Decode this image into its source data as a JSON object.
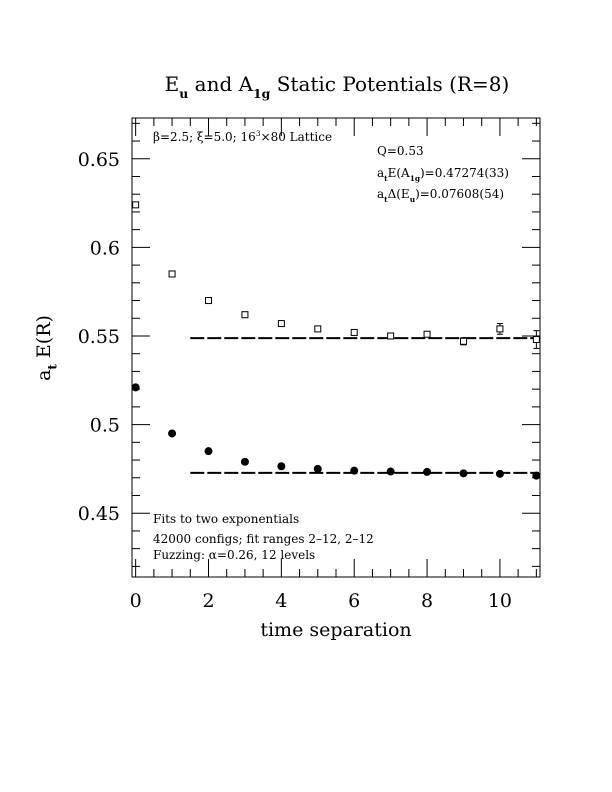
{
  "chart_data": {
    "type": "scatter",
    "title": {
      "parts": [
        {
          "text": "E",
          "style": "normal"
        },
        {
          "text": "u",
          "style": "sub"
        },
        {
          "text": " and A",
          "style": "normal"
        },
        {
          "text": "1g",
          "style": "sub"
        },
        {
          "text": " Static Potentials (R=8)",
          "style": "normal"
        }
      ]
    },
    "xlabel": "time separation",
    "ylabel": {
      "parts": [
        {
          "text": "a",
          "style": "normal"
        },
        {
          "text": "t",
          "style": "sub"
        },
        {
          "text": " E(R)",
          "style": "normal"
        }
      ]
    },
    "xlim": [
      -0.1,
      11.1
    ],
    "ylim": [
      0.414,
      0.673
    ],
    "x_ticks": [
      0,
      2,
      4,
      6,
      8,
      10
    ],
    "x_tick_labels": [
      "0",
      "2",
      "4",
      "6",
      "8",
      "10"
    ],
    "y_ticks": [
      0.45,
      0.5,
      0.55,
      0.6,
      0.65
    ],
    "y_tick_labels": [
      "0.45",
      "0.5",
      "0.55",
      "0.6",
      "0.65"
    ],
    "series": [
      {
        "marker": "open-square",
        "x": [
          0,
          1,
          2,
          3,
          4,
          5,
          6,
          7,
          8,
          9,
          10,
          11
        ],
        "y": [
          0.624,
          0.585,
          0.57,
          0.562,
          0.557,
          0.554,
          0.552,
          0.55,
          0.551,
          0.547,
          0.554,
          0.548
        ],
        "err": [
          0.001,
          0.001,
          0.001,
          0.001,
          0.001,
          0.001,
          0.001,
          0.001,
          0.0015,
          0.002,
          0.003,
          0.005
        ]
      },
      {
        "marker": "filled-circle",
        "x": [
          0,
          1,
          2,
          3,
          4,
          5,
          6,
          7,
          8,
          9,
          10,
          11
        ],
        "y": [
          0.521,
          0.495,
          0.485,
          0.479,
          0.4765,
          0.475,
          0.474,
          0.4735,
          0.4733,
          0.4725,
          0.4722,
          0.4712
        ],
        "err": [
          0,
          0,
          0,
          0,
          0,
          0,
          0,
          0,
          0,
          0,
          0,
          0
        ]
      }
    ],
    "fit_lines": [
      {
        "value": 0.54882,
        "x_range": [
          1.5,
          11.1
        ],
        "style": "dashed"
      },
      {
        "value": 0.47274,
        "x_range": [
          1.5,
          11.1
        ],
        "style": "dashed"
      }
    ],
    "annotations": {
      "lattice": {
        "parts": [
          {
            "text": "β=2.5; ξ=5.0; 16",
            "style": "normal"
          },
          {
            "text": "3",
            "style": "sup"
          },
          {
            "text": "×80 Lattice",
            "style": "normal"
          }
        ]
      },
      "q": {
        "parts": [
          {
            "text": "Q=0.53",
            "style": "normal"
          }
        ]
      },
      "a1g": {
        "parts": [
          {
            "text": "a",
            "style": "normal"
          },
          {
            "text": "t",
            "style": "sub"
          },
          {
            "text": "E(A",
            "style": "normal"
          },
          {
            "text": "1g",
            "style": "sub"
          },
          {
            "text": ")=0.47274(33)",
            "style": "normal"
          }
        ]
      },
      "eu": {
        "parts": [
          {
            "text": "a",
            "style": "normal"
          },
          {
            "text": "t",
            "style": "sub"
          },
          {
            "text": "Δ(E",
            "style": "normal"
          },
          {
            "text": "u",
            "style": "sub"
          },
          {
            "text": ")=0.07608(54)",
            "style": "normal"
          }
        ]
      },
      "fits": {
        "parts": [
          {
            "text": "Fits to two exponentials",
            "style": "normal"
          }
        ]
      },
      "configs": {
        "parts": [
          {
            "text": "42000 configs; fit ranges 2–12, 2–12",
            "style": "normal"
          }
        ]
      },
      "fuzzing": {
        "parts": [
          {
            "text": "Fuzzing: α=0.26, 12 levels",
            "style": "normal"
          }
        ]
      }
    }
  }
}
